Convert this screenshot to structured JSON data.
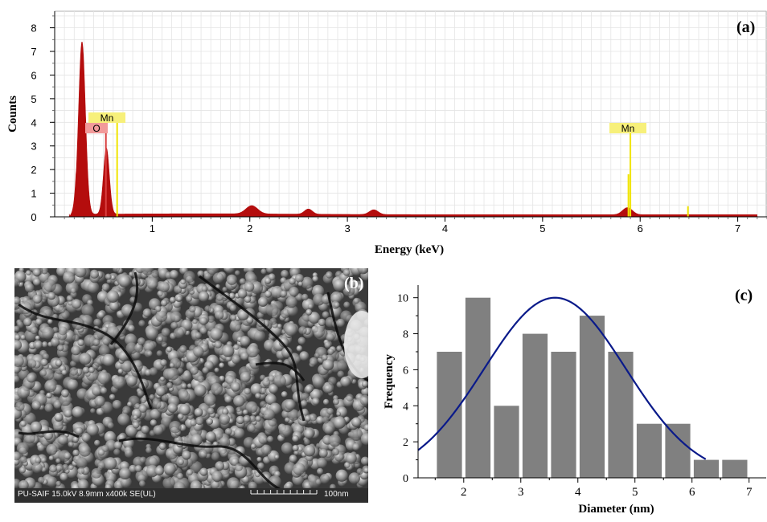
{
  "panel_a": {
    "label": "(a)",
    "peak_labels": [
      {
        "text": "Mn",
        "color": "#f7f07a",
        "line": "#f0e400"
      },
      {
        "text": "O",
        "color": "#f29a9a",
        "line": "#d84040"
      },
      {
        "text": "Mn",
        "color": "#f7f07a",
        "line": "#f0e400"
      }
    ]
  },
  "panel_b": {
    "label": "(b)",
    "info_text": "PU-SAIF 15.0kV 8.9mm x400k SE(UL)",
    "scale_text": "100nm"
  },
  "panel_c": {
    "label": "(c)"
  },
  "chart_data": [
    {
      "type": "area",
      "xlabel": "Energy (keV)",
      "ylabel": "Counts",
      "xlim": [
        0,
        7.3
      ],
      "ylim": [
        0,
        8.7
      ],
      "xticks": [
        1,
        2,
        3,
        4,
        5,
        6,
        7
      ],
      "yticks": [
        0,
        1,
        2,
        3,
        4,
        5,
        6,
        7,
        8
      ],
      "grid": true,
      "spectrum_color": "#b40d0d",
      "marker_color": "#f0e400",
      "peaks": [
        {
          "x": 0.28,
          "y": 7.3
        },
        {
          "x": 0.53,
          "y": 2.8
        },
        {
          "x": 2.02,
          "y": 0.35
        },
        {
          "x": 2.6,
          "y": 0.22
        },
        {
          "x": 3.27,
          "y": 0.2
        },
        {
          "x": 5.87,
          "y": 0.3
        }
      ],
      "markers": [
        {
          "element": "Mn",
          "x": 0.64,
          "y": 4.1
        },
        {
          "element": "O",
          "x": 0.525,
          "y": 3.6
        },
        {
          "element": "Mn",
          "x": 5.9,
          "y": 3.6
        }
      ]
    },
    {
      "type": "bar",
      "xlabel": "Diameter (nm)",
      "ylabel": "Frequency",
      "xlim": [
        1.2,
        7.3
      ],
      "ylim": [
        0,
        10.7
      ],
      "xticks": [
        2,
        3,
        4,
        5,
        6,
        7
      ],
      "yticks": [
        0,
        2,
        4,
        6,
        8,
        10
      ],
      "bar_color": "#808080",
      "curve_color": "#0a1a8a",
      "x": [
        1.75,
        2.25,
        2.75,
        3.25,
        3.75,
        4.25,
        4.75,
        5.25,
        5.75,
        6.25,
        6.75
      ],
      "values": [
        7,
        10,
        4,
        8,
        7,
        9,
        7,
        3,
        3,
        1,
        1
      ],
      "fit": {
        "type": "gaussian",
        "amplitude": 10,
        "mean": 3.6,
        "sigma": 1.24,
        "x_range": [
          1.2,
          6.25
        ]
      }
    }
  ]
}
